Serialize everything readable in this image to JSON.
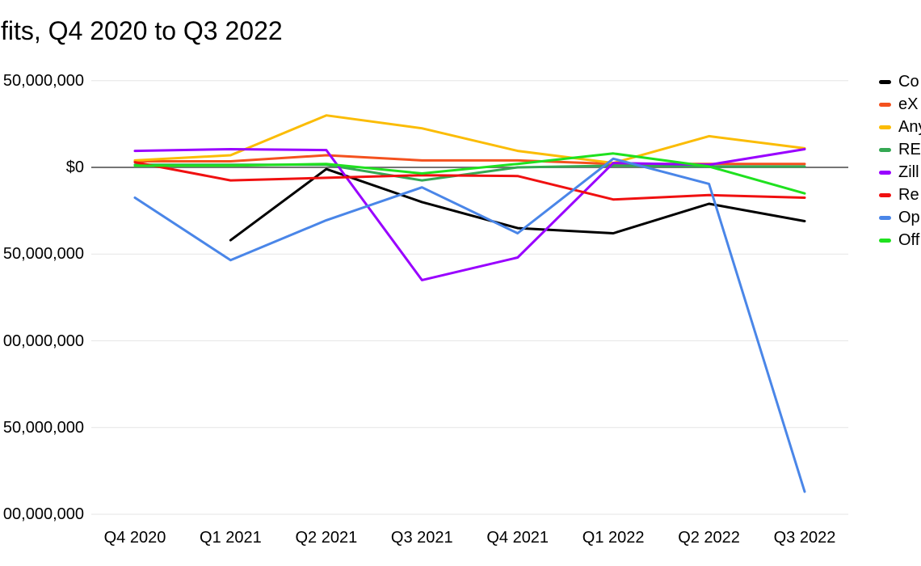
{
  "title": "fits, Q4 2020 to Q3 2022",
  "legend": {
    "position": "right"
  },
  "chart_data": {
    "type": "line",
    "title": "fits, Q4 2020 to Q3 2022",
    "xlabel": "",
    "ylabel": "",
    "units": "USD",
    "grid": true,
    "legend_position": "right",
    "categories": [
      "Q4 2020",
      "Q1 2021",
      "Q2 2021",
      "Q3 2021",
      "Q4 2021",
      "Q1 2022",
      "Q2 2022",
      "Q3 2022"
    ],
    "y_ticks": [
      {
        "label": "50,000,000",
        "value_usd_millions": 50
      },
      {
        "label": "$0",
        "value_usd_millions": 0
      },
      {
        "label": "50,000,000",
        "value_usd_millions": -50
      },
      {
        "label": "00,000,000",
        "value_usd_millions": -100
      },
      {
        "label": "50,000,000",
        "value_usd_millions": -150
      },
      {
        "label": "00,000,000",
        "value_usd_millions": -200
      }
    ],
    "ylim_usd_millions": [
      -210,
      55
    ],
    "series": [
      {
        "name": "Co",
        "color": "#000000",
        "values_usd_millions": [
          null,
          -42,
          -1,
          -20,
          -35,
          -38,
          -21,
          -31
        ]
      },
      {
        "name": "eX",
        "color": "#f4511e",
        "values_usd_millions": [
          3.5,
          3.5,
          7,
          4,
          4,
          2,
          2,
          2
        ]
      },
      {
        "name": "Any",
        "color": "#fbbc04",
        "values_usd_millions": [
          4,
          7,
          30,
          22.5,
          9.5,
          2.5,
          18,
          11
        ]
      },
      {
        "name": "RE",
        "color": "#34a853",
        "values_usd_millions": [
          1.5,
          1.5,
          1.5,
          -7.5,
          0,
          1,
          0.5,
          0.5
        ]
      },
      {
        "name": "Zill",
        "color": "#9900ff",
        "values_usd_millions": [
          9.5,
          10.5,
          10,
          -65,
          -52,
          2.5,
          1.5,
          10.5
        ]
      },
      {
        "name": "Re",
        "color": "#f01010",
        "values_usd_millions": [
          3,
          -7.5,
          -6,
          -4.5,
          -5,
          -18.5,
          -16,
          -17.5
        ]
      },
      {
        "name": "Op",
        "color": "#4a86e8",
        "values_usd_millions": [
          -17.5,
          -53.5,
          -30.5,
          -11.5,
          -38,
          5,
          -9.5,
          -187
        ]
      },
      {
        "name": "Off",
        "color": "#1fe11f",
        "values_usd_millions": [
          1,
          1,
          2,
          -3.5,
          2,
          8,
          0.5,
          -15
        ]
      }
    ],
    "axis_colors": {
      "zero_line": "#757575",
      "gridline": "#e6e6e6"
    }
  }
}
